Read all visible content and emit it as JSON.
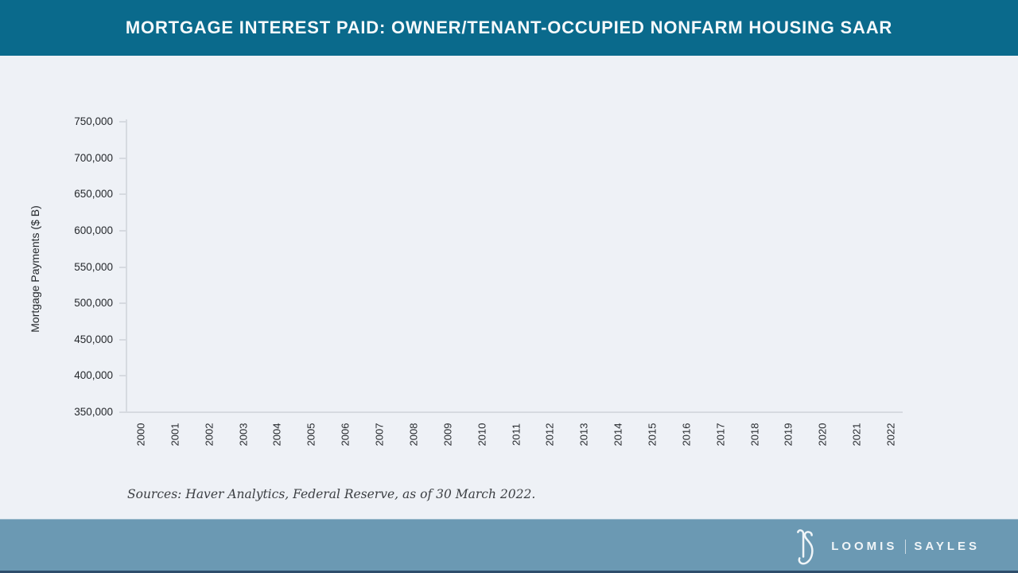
{
  "header": {
    "title": "MORTGAGE INTEREST PAID: OWNER/TENANT-OCCUPIED NONFARM HOUSING SAAR",
    "bg_color": "#0a6a8c",
    "text_color": "#f5f9fb"
  },
  "chart": {
    "y_axis_title": "Mortgage Payments ($ B)"
  },
  "chart_data": {
    "type": "line",
    "title": "Mortgage Interest Paid: Owner/Tenant-Occupied Nonfarm Housing SAAR",
    "ylabel": "Mortgage Payments ($ B)",
    "xlabel": "",
    "y_ticks": [
      "750,000",
      "700,000",
      "650,000",
      "600,000",
      "550,000",
      "500,000",
      "450,000",
      "400,000",
      "350,000"
    ],
    "x_ticks": [
      "2000",
      "2001",
      "2002",
      "2003",
      "2004",
      "2005",
      "2006",
      "2007",
      "2008",
      "2009",
      "2010",
      "2011",
      "2012",
      "2013",
      "2014",
      "2015",
      "2016",
      "2017",
      "2018",
      "2019",
      "2020",
      "2021",
      "2022"
    ],
    "ylim": [
      350000,
      750000
    ],
    "y_tick_step": 50000,
    "grid": false,
    "legend": false,
    "series": [],
    "plot_area_empty": true
  },
  "source_note": {
    "text": "Sources: Haver Analytics, Federal Reserve, as of 30 March 2022."
  },
  "footer": {
    "bg_color": "#6b99b3",
    "stripe_color": "#2e4d6b",
    "monogram": "LS",
    "brand_left": "LOOMIS",
    "brand_right": "SAYLES"
  },
  "colors": {
    "page_bg": "#eef1f6",
    "axis": "#d6dae0",
    "tick_text": "#26292d"
  }
}
